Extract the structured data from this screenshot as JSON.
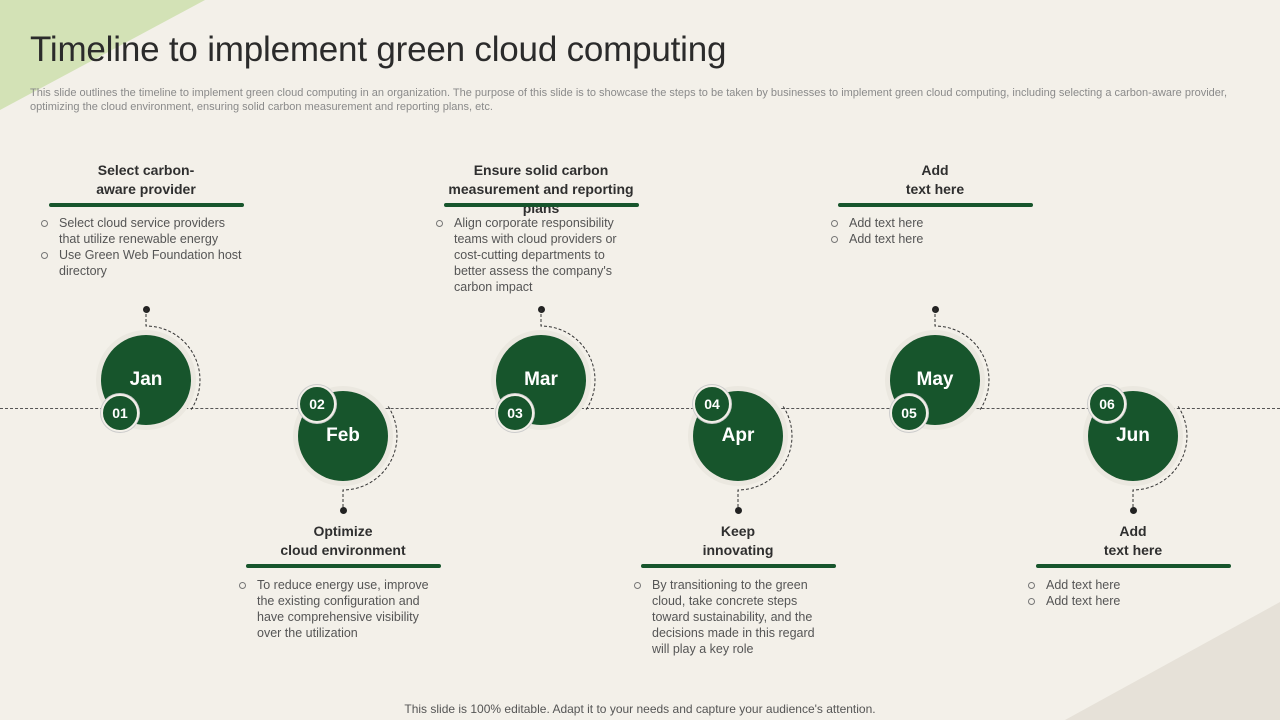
{
  "title": "Timeline to implement green cloud computing",
  "subtitle": "This slide outlines the timeline to implement green cloud computing in an organization. The purpose of this slide is to showcase the steps to be taken by businesses to implement green cloud computing, including selecting a carbon-aware provider, optimizing the cloud environment, ensuring solid carbon measurement and reporting plans, etc.",
  "footer": "This slide is 100% editable. Adapt it to your needs and capture your audience's attention.",
  "colors": {
    "accent": "#17552c",
    "background": "#f3f0e9",
    "corner": "#d3e2b6"
  },
  "steps": [
    {
      "month": "Jan",
      "number": "01",
      "heading": "Select carbon-\naware provider",
      "bullets": [
        "Select cloud service providers that utilize renewable energy",
        "Use Green Web Foundation host directory"
      ]
    },
    {
      "month": "Feb",
      "number": "02",
      "heading": "Optimize\ncloud environment",
      "bullets": [
        "To reduce energy use, improve the existing configuration and have comprehensive visibility over the utilization"
      ]
    },
    {
      "month": "Mar",
      "number": "03",
      "heading": "Ensure solid carbon\nmeasurement and reporting plans",
      "bullets": [
        "Align corporate responsibility teams with cloud providers or cost-cutting departments to better assess the company's carbon impact"
      ]
    },
    {
      "month": "Apr",
      "number": "04",
      "heading": "Keep\ninnovating",
      "bullets": [
        "By transitioning to the green cloud, take concrete steps toward sustainability, and the decisions made in this regard will play a key role"
      ]
    },
    {
      "month": "May",
      "number": "05",
      "heading": "Add\ntext here",
      "bullets": [
        "Add text here",
        "Add text here"
      ]
    },
    {
      "month": "Jun",
      "number": "06",
      "heading": "Add\ntext here",
      "bullets": [
        "Add text here",
        "Add text here"
      ]
    }
  ]
}
